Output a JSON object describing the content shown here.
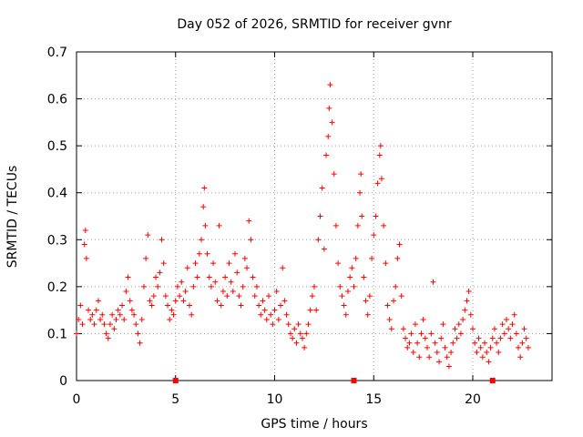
{
  "chart_data": {
    "type": "scatter",
    "title": "Day 052 of 2026, SRMTID for receiver gvnr",
    "xlabel": "GPS time / hours",
    "ylabel": "SRMTID / TECUs",
    "xlim": [
      0,
      24
    ],
    "ylim": [
      0,
      0.7
    ],
    "x_ticks": [
      "0",
      "5",
      "10",
      "15",
      "20"
    ],
    "x_tick_values": [
      0,
      5,
      10,
      15,
      20
    ],
    "y_ticks": [
      "0",
      "0.1",
      "0.2",
      "0.3",
      "0.4",
      "0.5",
      "0.6",
      "0.7"
    ],
    "y_tick_values": [
      0,
      0.1,
      0.2,
      0.3,
      0.4,
      0.5,
      0.6,
      0.7
    ],
    "grid": true,
    "marker": "+",
    "color": "#ff0000",
    "series": [
      {
        "name": "SRMTID",
        "points": [
          [
            0.0,
            0.1
          ],
          [
            0.1,
            0.13
          ],
          [
            0.2,
            0.16
          ],
          [
            0.3,
            0.12
          ],
          [
            0.4,
            0.29
          ],
          [
            0.45,
            0.32
          ],
          [
            0.5,
            0.26
          ],
          [
            0.6,
            0.15
          ],
          [
            0.7,
            0.13
          ],
          [
            0.8,
            0.14
          ],
          [
            0.9,
            0.12
          ],
          [
            1.0,
            0.15
          ],
          [
            1.1,
            0.17
          ],
          [
            1.2,
            0.13
          ],
          [
            1.3,
            0.14
          ],
          [
            1.4,
            0.12
          ],
          [
            1.5,
            0.1
          ],
          [
            1.6,
            0.09
          ],
          [
            1.7,
            0.12
          ],
          [
            1.8,
            0.14
          ],
          [
            1.9,
            0.11
          ],
          [
            2.0,
            0.13
          ],
          [
            2.1,
            0.15
          ],
          [
            2.2,
            0.14
          ],
          [
            2.3,
            0.16
          ],
          [
            2.4,
            0.13
          ],
          [
            2.5,
            0.19
          ],
          [
            2.6,
            0.22
          ],
          [
            2.7,
            0.17
          ],
          [
            2.8,
            0.15
          ],
          [
            2.9,
            0.14
          ],
          [
            3.0,
            0.12
          ],
          [
            3.1,
            0.1
          ],
          [
            3.2,
            0.08
          ],
          [
            3.3,
            0.13
          ],
          [
            3.4,
            0.2
          ],
          [
            3.5,
            0.26
          ],
          [
            3.6,
            0.31
          ],
          [
            3.7,
            0.17
          ],
          [
            3.8,
            0.16
          ],
          [
            3.9,
            0.18
          ],
          [
            4.0,
            0.22
          ],
          [
            4.1,
            0.2
          ],
          [
            4.2,
            0.23
          ],
          [
            4.3,
            0.3
          ],
          [
            4.4,
            0.25
          ],
          [
            4.5,
            0.18
          ],
          [
            4.6,
            0.16
          ],
          [
            4.7,
            0.13
          ],
          [
            4.8,
            0.15
          ],
          [
            4.9,
            0.14
          ],
          [
            5.0,
            0.17
          ],
          [
            5.1,
            0.2
          ],
          [
            5.2,
            0.18
          ],
          [
            5.3,
            0.21
          ],
          [
            5.4,
            0.17
          ],
          [
            5.5,
            0.19
          ],
          [
            5.6,
            0.24
          ],
          [
            5.7,
            0.16
          ],
          [
            5.8,
            0.14
          ],
          [
            5.9,
            0.2
          ],
          [
            6.0,
            0.25
          ],
          [
            6.1,
            0.22
          ],
          [
            6.2,
            0.27
          ],
          [
            6.3,
            0.3
          ],
          [
            6.4,
            0.37
          ],
          [
            6.45,
            0.41
          ],
          [
            6.5,
            0.33
          ],
          [
            6.6,
            0.27
          ],
          [
            6.7,
            0.22
          ],
          [
            6.8,
            0.2
          ],
          [
            6.9,
            0.25
          ],
          [
            7.0,
            0.21
          ],
          [
            7.1,
            0.17
          ],
          [
            7.2,
            0.33
          ],
          [
            7.3,
            0.16
          ],
          [
            7.4,
            0.19
          ],
          [
            7.5,
            0.22
          ],
          [
            7.6,
            0.18
          ],
          [
            7.7,
            0.25
          ],
          [
            7.8,
            0.21
          ],
          [
            7.9,
            0.19
          ],
          [
            8.0,
            0.27
          ],
          [
            8.1,
            0.23
          ],
          [
            8.2,
            0.18
          ],
          [
            8.3,
            0.16
          ],
          [
            8.4,
            0.2
          ],
          [
            8.5,
            0.26
          ],
          [
            8.6,
            0.24
          ],
          [
            8.7,
            0.34
          ],
          [
            8.8,
            0.3
          ],
          [
            8.9,
            0.22
          ],
          [
            9.0,
            0.18
          ],
          [
            9.1,
            0.2
          ],
          [
            9.2,
            0.16
          ],
          [
            9.3,
            0.14
          ],
          [
            9.4,
            0.17
          ],
          [
            9.5,
            0.15
          ],
          [
            9.6,
            0.13
          ],
          [
            9.7,
            0.18
          ],
          [
            9.8,
            0.14
          ],
          [
            9.9,
            0.12
          ],
          [
            10.0,
            0.15
          ],
          [
            10.1,
            0.19
          ],
          [
            10.2,
            0.13
          ],
          [
            10.3,
            0.16
          ],
          [
            10.4,
            0.24
          ],
          [
            10.5,
            0.17
          ],
          [
            10.6,
            0.14
          ],
          [
            10.7,
            0.12
          ],
          [
            10.8,
            0.1
          ],
          [
            10.9,
            0.09
          ],
          [
            11.0,
            0.11
          ],
          [
            11.1,
            0.08
          ],
          [
            11.2,
            0.12
          ],
          [
            11.3,
            0.1
          ],
          [
            11.4,
            0.09
          ],
          [
            11.5,
            0.07
          ],
          [
            11.6,
            0.1
          ],
          [
            11.7,
            0.12
          ],
          [
            11.8,
            0.15
          ],
          [
            11.9,
            0.18
          ],
          [
            12.0,
            0.2
          ],
          [
            12.1,
            0.15
          ],
          [
            12.2,
            0.3
          ],
          [
            12.3,
            0.35
          ],
          [
            12.4,
            0.41
          ],
          [
            12.5,
            0.28
          ],
          [
            12.6,
            0.48
          ],
          [
            12.7,
            0.52
          ],
          [
            12.75,
            0.58
          ],
          [
            12.8,
            0.63
          ],
          [
            12.9,
            0.55
          ],
          [
            13.0,
            0.44
          ],
          [
            13.1,
            0.33
          ],
          [
            13.2,
            0.25
          ],
          [
            13.3,
            0.2
          ],
          [
            13.4,
            0.18
          ],
          [
            13.5,
            0.16
          ],
          [
            13.6,
            0.14
          ],
          [
            13.7,
            0.19
          ],
          [
            13.8,
            0.22
          ],
          [
            13.9,
            0.24
          ],
          [
            14.0,
            0.2
          ],
          [
            14.1,
            0.26
          ],
          [
            14.2,
            0.33
          ],
          [
            14.3,
            0.4
          ],
          [
            14.35,
            0.44
          ],
          [
            14.4,
            0.35
          ],
          [
            14.5,
            0.22
          ],
          [
            14.6,
            0.17
          ],
          [
            14.7,
            0.14
          ],
          [
            14.8,
            0.18
          ],
          [
            14.9,
            0.26
          ],
          [
            15.0,
            0.31
          ],
          [
            15.1,
            0.35
          ],
          [
            15.2,
            0.42
          ],
          [
            15.3,
            0.48
          ],
          [
            15.35,
            0.5
          ],
          [
            15.4,
            0.43
          ],
          [
            15.5,
            0.33
          ],
          [
            15.6,
            0.25
          ],
          [
            15.7,
            0.16
          ],
          [
            15.8,
            0.13
          ],
          [
            15.9,
            0.11
          ],
          [
            16.0,
            0.17
          ],
          [
            16.1,
            0.2
          ],
          [
            16.2,
            0.26
          ],
          [
            16.3,
            0.29
          ],
          [
            16.4,
            0.18
          ],
          [
            16.5,
            0.11
          ],
          [
            16.6,
            0.09
          ],
          [
            16.7,
            0.07
          ],
          [
            16.8,
            0.08
          ],
          [
            16.9,
            0.1
          ],
          [
            17.0,
            0.06
          ],
          [
            17.1,
            0.12
          ],
          [
            17.2,
            0.08
          ],
          [
            17.3,
            0.05
          ],
          [
            17.4,
            0.1
          ],
          [
            17.5,
            0.13
          ],
          [
            17.6,
            0.09
          ],
          [
            17.7,
            0.07
          ],
          [
            17.8,
            0.05
          ],
          [
            17.9,
            0.1
          ],
          [
            18.0,
            0.21
          ],
          [
            18.1,
            0.08
          ],
          [
            18.2,
            0.06
          ],
          [
            18.3,
            0.04
          ],
          [
            18.4,
            0.09
          ],
          [
            18.5,
            0.12
          ],
          [
            18.6,
            0.07
          ],
          [
            18.7,
            0.05
          ],
          [
            18.8,
            0.03
          ],
          [
            18.9,
            0.06
          ],
          [
            19.0,
            0.08
          ],
          [
            19.1,
            0.11
          ],
          [
            19.2,
            0.09
          ],
          [
            19.3,
            0.12
          ],
          [
            19.4,
            0.1
          ],
          [
            19.5,
            0.13
          ],
          [
            19.6,
            0.15
          ],
          [
            19.7,
            0.17
          ],
          [
            19.8,
            0.19
          ],
          [
            19.9,
            0.14
          ],
          [
            20.0,
            0.11
          ],
          [
            20.1,
            0.08
          ],
          [
            20.2,
            0.06
          ],
          [
            20.3,
            0.09
          ],
          [
            20.4,
            0.07
          ],
          [
            20.5,
            0.05
          ],
          [
            20.6,
            0.08
          ],
          [
            20.7,
            0.06
          ],
          [
            20.8,
            0.04
          ],
          [
            20.9,
            0.07
          ],
          [
            21.0,
            0.09
          ],
          [
            21.1,
            0.11
          ],
          [
            21.2,
            0.08
          ],
          [
            21.3,
            0.06
          ],
          [
            21.4,
            0.09
          ],
          [
            21.5,
            0.12
          ],
          [
            21.6,
            0.1
          ],
          [
            21.7,
            0.13
          ],
          [
            21.8,
            0.11
          ],
          [
            21.9,
            0.09
          ],
          [
            22.0,
            0.12
          ],
          [
            22.1,
            0.14
          ],
          [
            22.2,
            0.1
          ],
          [
            22.3,
            0.07
          ],
          [
            22.4,
            0.05
          ],
          [
            22.5,
            0.08
          ],
          [
            22.6,
            0.11
          ],
          [
            22.7,
            0.09
          ],
          [
            22.8,
            0.07
          ]
        ]
      }
    ],
    "axis_markers": {
      "description": "small filled squares on the x axis",
      "x": [
        5,
        14,
        21
      ]
    }
  }
}
